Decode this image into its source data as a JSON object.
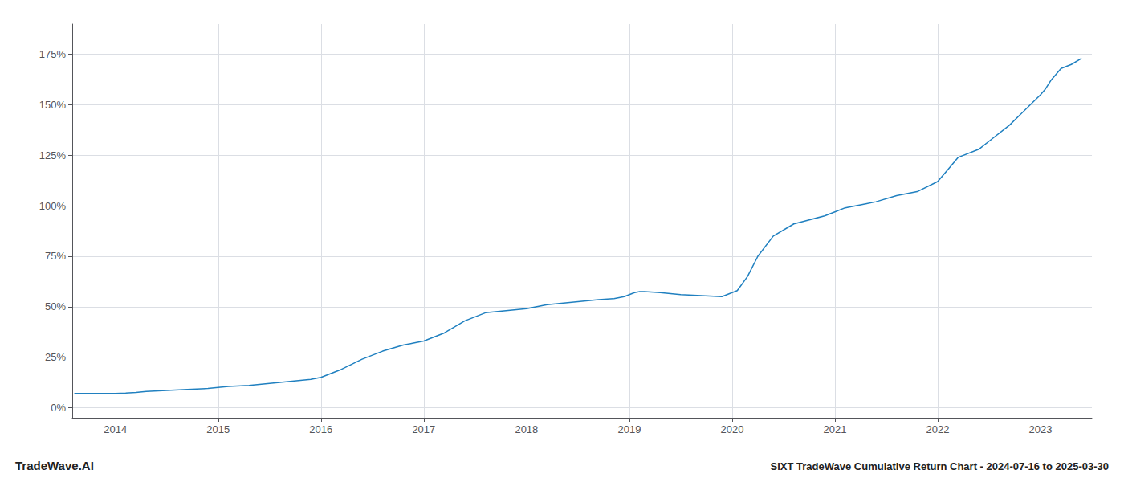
{
  "chart_data": {
    "type": "line",
    "title": "SIXT TradeWave Cumulative Return Chart - 2024-07-16 to 2025-03-30",
    "annotations": [
      "TradeWave.AI"
    ],
    "color": "#2080c0",
    "grid": true,
    "x": [
      2013.6,
      2014.0,
      2014.1,
      2014.2,
      2014.3,
      2014.5,
      2014.7,
      2014.9,
      2015.0,
      2015.1,
      2015.3,
      2015.5,
      2015.7,
      2015.9,
      2016.0,
      2016.1,
      2016.2,
      2016.4,
      2016.6,
      2016.8,
      2016.9,
      2017.0,
      2017.2,
      2017.4,
      2017.6,
      2017.8,
      2018.0,
      2018.1,
      2018.2,
      2018.4,
      2018.6,
      2018.7,
      2018.85,
      2018.95,
      2019.05,
      2019.1,
      2019.15,
      2019.3,
      2019.5,
      2019.7,
      2019.9,
      2020.05,
      2020.15,
      2020.25,
      2020.4,
      2020.6,
      2020.75,
      2020.9,
      2021.0,
      2021.1,
      2021.2,
      2021.3,
      2021.4,
      2021.6,
      2021.8,
      2022.0,
      2022.1,
      2022.2,
      2022.4,
      2022.5,
      2022.7,
      2022.8,
      2022.9,
      2023.0,
      2023.05,
      2023.1,
      2023.15,
      2023.2,
      2023.3,
      2023.4
    ],
    "values": [
      7,
      7,
      7.2,
      7.5,
      8,
      8.5,
      9,
      9.5,
      10,
      10.5,
      11,
      12,
      13,
      14,
      15,
      17,
      19,
      24,
      28,
      31,
      32,
      33,
      37,
      43,
      47,
      48,
      49,
      50,
      51,
      52,
      53,
      53.5,
      54,
      55,
      57,
      57.5,
      57.5,
      57,
      56,
      55.5,
      55,
      58,
      65,
      75,
      85,
      91,
      93,
      95,
      97,
      99,
      100,
      101,
      102,
      105,
      107,
      112,
      118,
      124,
      128,
      132,
      140,
      145,
      150,
      155,
      158,
      162,
      165,
      168,
      170,
      173
    ],
    "xlim": [
      2013.58,
      2023.5
    ],
    "xticks": [
      2014,
      2015,
      2016,
      2017,
      2018,
      2019,
      2020,
      2021,
      2022,
      2023
    ],
    "ylim": [
      -5,
      190
    ],
    "yticks": [
      {
        "value": 0,
        "label": "0%"
      },
      {
        "value": 25,
        "label": "25%"
      },
      {
        "value": 50,
        "label": "50%"
      },
      {
        "value": 75,
        "label": "75%"
      },
      {
        "value": 100,
        "label": "100%"
      },
      {
        "value": 125,
        "label": "125%"
      },
      {
        "value": 150,
        "label": "150%"
      },
      {
        "value": 175,
        "label": "175%"
      }
    ]
  }
}
